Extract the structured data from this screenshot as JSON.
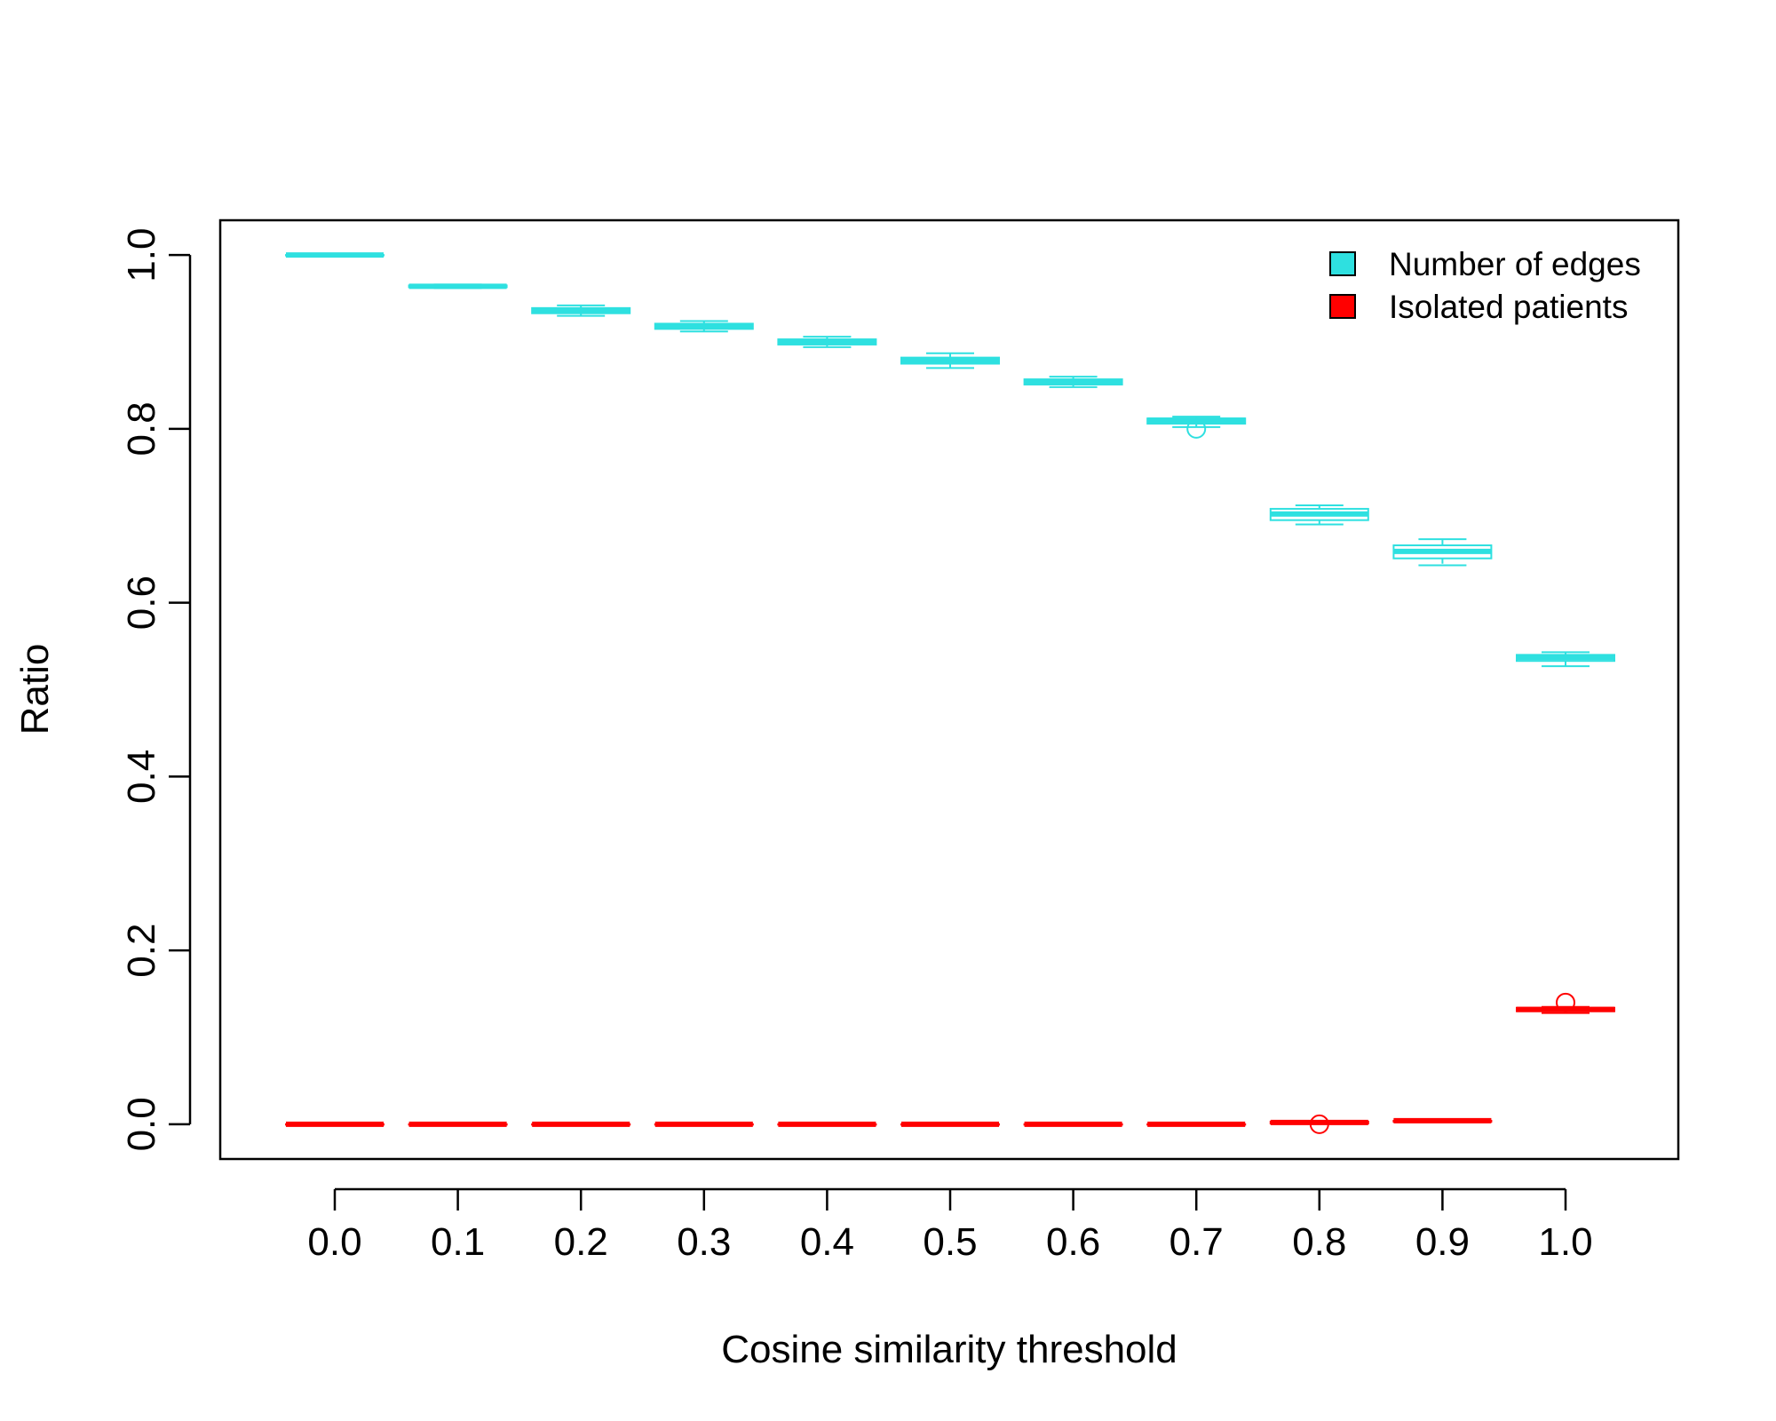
{
  "chart_data": {
    "type": "boxplot",
    "xlabel": "Cosine similarity threshold",
    "ylabel": "Ratio",
    "categories": [
      "0.0",
      "0.1",
      "0.2",
      "0.3",
      "0.4",
      "0.5",
      "0.6",
      "0.7",
      "0.8",
      "0.9",
      "1.0"
    ],
    "yticks": [
      "0.0",
      "0.2",
      "0.4",
      "0.6",
      "0.8",
      "1.0"
    ],
    "ylim": [
      -0.04,
      1.04
    ],
    "grid": false,
    "legend_position": "top-right",
    "series": [
      {
        "name": "Number of edges",
        "color": "#2ee0e0",
        "boxes": [
          {
            "min": 1.0,
            "q1": 1.0,
            "median": 1.0,
            "q3": 1.0,
            "max": 1.0,
            "outliers": []
          },
          {
            "min": 0.962,
            "q1": 0.963,
            "median": 0.964,
            "q3": 0.965,
            "max": 0.966,
            "outliers": []
          },
          {
            "min": 0.93,
            "q1": 0.933,
            "median": 0.936,
            "q3": 0.939,
            "max": 0.942,
            "outliers": []
          },
          {
            "min": 0.912,
            "q1": 0.915,
            "median": 0.918,
            "q3": 0.921,
            "max": 0.924,
            "outliers": []
          },
          {
            "min": 0.894,
            "q1": 0.897,
            "median": 0.9,
            "q3": 0.903,
            "max": 0.906,
            "outliers": []
          },
          {
            "min": 0.87,
            "q1": 0.875,
            "median": 0.879,
            "q3": 0.882,
            "max": 0.887,
            "outliers": []
          },
          {
            "min": 0.848,
            "q1": 0.851,
            "median": 0.854,
            "q3": 0.857,
            "max": 0.86,
            "outliers": []
          },
          {
            "min": 0.802,
            "q1": 0.806,
            "median": 0.81,
            "q3": 0.812,
            "max": 0.814,
            "outliers": [
              0.8
            ]
          },
          {
            "min": 0.69,
            "q1": 0.695,
            "median": 0.702,
            "q3": 0.708,
            "max": 0.712,
            "outliers": []
          },
          {
            "min": 0.643,
            "q1": 0.651,
            "median": 0.659,
            "q3": 0.666,
            "max": 0.673,
            "outliers": []
          },
          {
            "min": 0.527,
            "q1": 0.533,
            "median": 0.537,
            "q3": 0.54,
            "max": 0.543,
            "outliers": []
          }
        ]
      },
      {
        "name": "Isolated patients",
        "color": "#ff0000",
        "boxes": [
          {
            "min": 0.0,
            "q1": 0.0,
            "median": 0.0,
            "q3": 0.0,
            "max": 0.0,
            "outliers": []
          },
          {
            "min": 0.0,
            "q1": 0.0,
            "median": 0.0,
            "q3": 0.0,
            "max": 0.0,
            "outliers": []
          },
          {
            "min": 0.0,
            "q1": 0.0,
            "median": 0.0,
            "q3": 0.0,
            "max": 0.0,
            "outliers": []
          },
          {
            "min": 0.0,
            "q1": 0.0,
            "median": 0.0,
            "q3": 0.0,
            "max": 0.0,
            "outliers": []
          },
          {
            "min": 0.0,
            "q1": 0.0,
            "median": 0.0,
            "q3": 0.0,
            "max": 0.0,
            "outliers": []
          },
          {
            "min": 0.0,
            "q1": 0.0,
            "median": 0.0,
            "q3": 0.0,
            "max": 0.0,
            "outliers": []
          },
          {
            "min": 0.0,
            "q1": 0.0,
            "median": 0.0,
            "q3": 0.0,
            "max": 0.0,
            "outliers": []
          },
          {
            "min": 0.0,
            "q1": 0.0,
            "median": 0.0,
            "q3": 0.0,
            "max": 0.0,
            "outliers": []
          },
          {
            "min": 0.001,
            "q1": 0.001,
            "median": 0.002,
            "q3": 0.003,
            "max": 0.003,
            "outliers": [
              0.0
            ]
          },
          {
            "min": 0.003,
            "q1": 0.003,
            "median": 0.004,
            "q3": 0.004,
            "max": 0.005,
            "outliers": []
          },
          {
            "min": 0.128,
            "q1": 0.13,
            "median": 0.132,
            "q3": 0.134,
            "max": 0.135,
            "outliers": [
              0.14
            ]
          }
        ]
      }
    ]
  }
}
